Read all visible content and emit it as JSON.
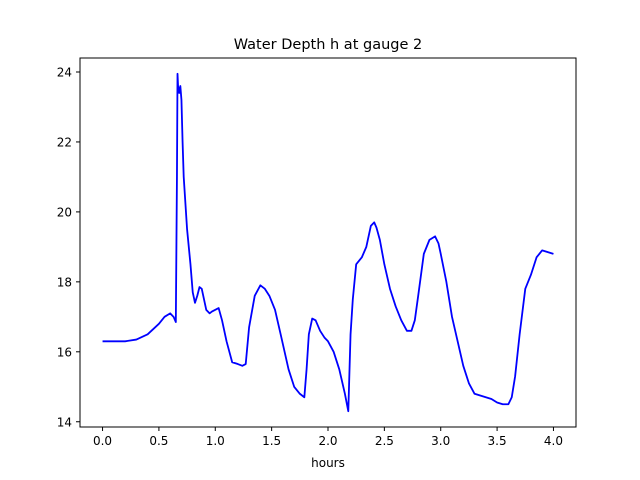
{
  "chart_data": {
    "type": "line",
    "title": "Water Depth h at gauge 2",
    "xlabel": "hours",
    "ylabel": "",
    "xlim": [
      -0.2,
      4.2
    ],
    "ylim": [
      13.85,
      24.4
    ],
    "grid": false,
    "xticks": [
      0.0,
      0.5,
      1.0,
      1.5,
      2.0,
      2.5,
      3.0,
      3.5,
      4.0
    ],
    "xtick_labels": [
      "0.0",
      "0.5",
      "1.0",
      "1.5",
      "2.0",
      "2.5",
      "3.0",
      "3.5",
      "4.0"
    ],
    "yticks": [
      14,
      16,
      18,
      20,
      22,
      24
    ],
    "ytick_labels": [
      "14",
      "16",
      "18",
      "20",
      "22",
      "24"
    ],
    "series": [
      {
        "color": "#0000ff",
        "x": [
          0.0,
          0.2,
          0.3,
          0.4,
          0.5,
          0.55,
          0.6,
          0.63,
          0.65,
          0.66,
          0.665,
          0.67,
          0.68,
          0.69,
          0.7,
          0.71,
          0.72,
          0.75,
          0.78,
          0.8,
          0.82,
          0.84,
          0.86,
          0.88,
          0.9,
          0.92,
          0.95,
          0.97,
          1.0,
          1.03,
          1.06,
          1.1,
          1.15,
          1.2,
          1.24,
          1.27,
          1.3,
          1.35,
          1.4,
          1.44,
          1.48,
          1.53,
          1.58,
          1.65,
          1.7,
          1.75,
          1.79,
          1.81,
          1.83,
          1.86,
          1.89,
          1.93,
          1.97,
          2.0,
          2.05,
          2.1,
          2.15,
          2.18,
          2.2,
          2.22,
          2.25,
          2.3,
          2.34,
          2.38,
          2.41,
          2.43,
          2.46,
          2.5,
          2.55,
          2.6,
          2.65,
          2.7,
          2.74,
          2.77,
          2.8,
          2.85,
          2.9,
          2.95,
          2.98,
          3.0,
          3.05,
          3.1,
          3.15,
          3.2,
          3.25,
          3.3,
          3.35,
          3.4,
          3.45,
          3.5,
          3.55,
          3.6,
          3.63,
          3.66,
          3.7,
          3.75,
          3.8,
          3.85,
          3.9,
          3.95,
          4.0
        ],
        "y": [
          16.3,
          16.3,
          16.35,
          16.5,
          16.8,
          17.0,
          17.1,
          17.0,
          16.85,
          21.0,
          23.95,
          23.6,
          23.4,
          23.6,
          23.2,
          22.0,
          21.0,
          19.5,
          18.5,
          17.7,
          17.4,
          17.6,
          17.85,
          17.8,
          17.5,
          17.2,
          17.1,
          17.15,
          17.2,
          17.25,
          16.9,
          16.3,
          15.7,
          15.65,
          15.6,
          15.65,
          16.7,
          17.6,
          17.9,
          17.8,
          17.6,
          17.2,
          16.5,
          15.5,
          15.0,
          14.8,
          14.7,
          15.5,
          16.5,
          16.95,
          16.9,
          16.6,
          16.4,
          16.3,
          16.0,
          15.5,
          14.8,
          14.3,
          16.5,
          17.5,
          18.5,
          18.7,
          19.0,
          19.6,
          19.7,
          19.55,
          19.2,
          18.5,
          17.8,
          17.3,
          16.9,
          16.6,
          16.6,
          16.9,
          17.6,
          18.8,
          19.2,
          19.3,
          19.1,
          18.8,
          18.0,
          17.0,
          16.3,
          15.6,
          15.1,
          14.8,
          14.75,
          14.7,
          14.65,
          14.55,
          14.5,
          14.5,
          14.7,
          15.3,
          16.5,
          17.8,
          18.2,
          18.7,
          18.9,
          18.85,
          18.8
        ]
      }
    ]
  }
}
